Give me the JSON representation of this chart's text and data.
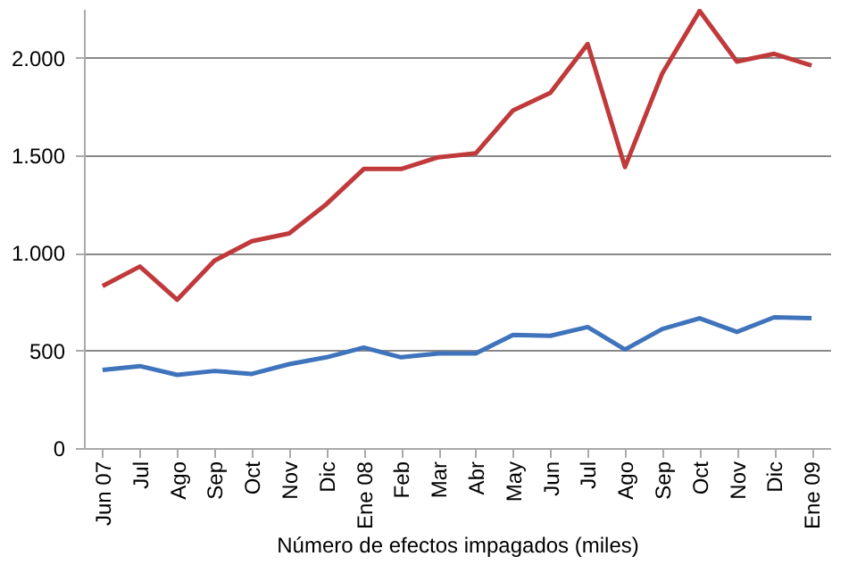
{
  "chart_data": {
    "type": "line",
    "xlabel": "Número de efectos impagados (miles)",
    "categories": [
      "Jun 07",
      "Jul",
      "Ago",
      "Sep",
      "Oct",
      "Nov",
      "Dic",
      "Ene 08",
      "Feb",
      "Mar",
      "Abr",
      "May",
      "Jun",
      "Jul",
      "Ago",
      "Sep",
      "Oct",
      "Nov",
      "Dic",
      "Ene 09"
    ],
    "series": [
      {
        "color": "#c0393b",
        "values": [
          830,
          930,
          760,
          960,
          1060,
          1100,
          1250,
          1430,
          1430,
          1490,
          1510,
          1730,
          1820,
          2070,
          1440,
          1920,
          2240,
          1980,
          2020,
          1960
        ]
      },
      {
        "color": "#3f74bc",
        "values": [
          400,
          420,
          375,
          395,
          380,
          430,
          465,
          515,
          465,
          485,
          485,
          580,
          575,
          620,
          505,
          610,
          665,
          595,
          670,
          665
        ]
      }
    ],
    "ylim": [
      0,
      2250
    ],
    "yticks": [
      0,
      500,
      {
        "value": 1000,
        "label": "1.000"
      },
      {
        "value": 1500,
        "label": "1.500"
      },
      {
        "value": 2000,
        "label": "2.000"
      }
    ],
    "grid": "y",
    "marker": "none",
    "line_style": "solid"
  }
}
